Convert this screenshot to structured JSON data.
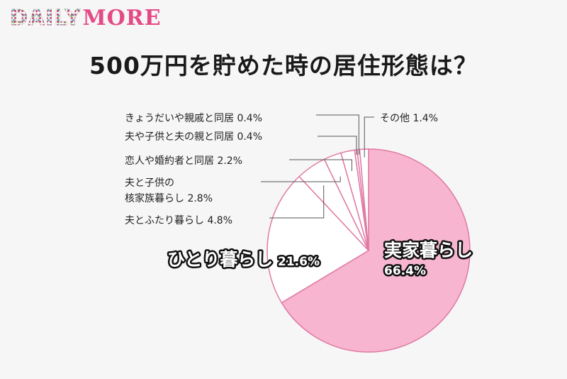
{
  "logo": {
    "daily": "DAILY",
    "more": "MORE"
  },
  "title": "500万円を貯めた時の居住形態は？",
  "chart_data": {
    "type": "pie",
    "title": "500万円を貯めた時の居住形態は？",
    "start_angle_deg": 0,
    "direction": "clockwise",
    "slices": [
      {
        "label": "実家暮らし",
        "value": 66.4,
        "value_label": "66.4%",
        "color": "#f7b5cf"
      },
      {
        "label": "ひとり暮らし",
        "value": 21.6,
        "value_label": "21.6%",
        "color": "#ffffff"
      },
      {
        "label": "夫とふたり暮らし",
        "value": 4.8,
        "value_label": "4.8%",
        "color": "#ffffff"
      },
      {
        "label": "夫と子供の核家族暮らし",
        "value": 2.8,
        "value_label": "2.8%",
        "color": "#ffffff"
      },
      {
        "label": "恋人や婚約者と同居",
        "value": 2.2,
        "value_label": "2.2%",
        "color": "#ffffff"
      },
      {
        "label": "夫や子供と夫の親と同居",
        "value": 0.4,
        "value_label": "0.4%",
        "color": "#ffffff"
      },
      {
        "label": "きょうだいや親戚と同居",
        "value": 0.4,
        "value_label": "0.4%",
        "color": "#ffffff"
      },
      {
        "label": "その他",
        "value": 1.4,
        "value_label": "1.4%",
        "color": "#ffffff"
      }
    ]
  },
  "labels": {
    "slice0_name": "実家暮らし",
    "slice0_value": "66.4%",
    "slice1_name": "ひとり暮らし",
    "slice1_value": "21.6%",
    "slice2": "夫とふたり暮らし 4.8%",
    "slice3_line1": "夫と子供の",
    "slice3_line2": "核家族暮らし 2.8%",
    "slice4": "恋人や婚約者と同居 2.2%",
    "slice5": "夫や子供と夫の親と同居 0.4%",
    "slice6": "きょうだいや親戚と同居 0.4%",
    "slice7": "その他 1.4%"
  },
  "colors": {
    "pink": "#f7b5cf",
    "stroke": "#e07aa4",
    "line": "#555555"
  }
}
